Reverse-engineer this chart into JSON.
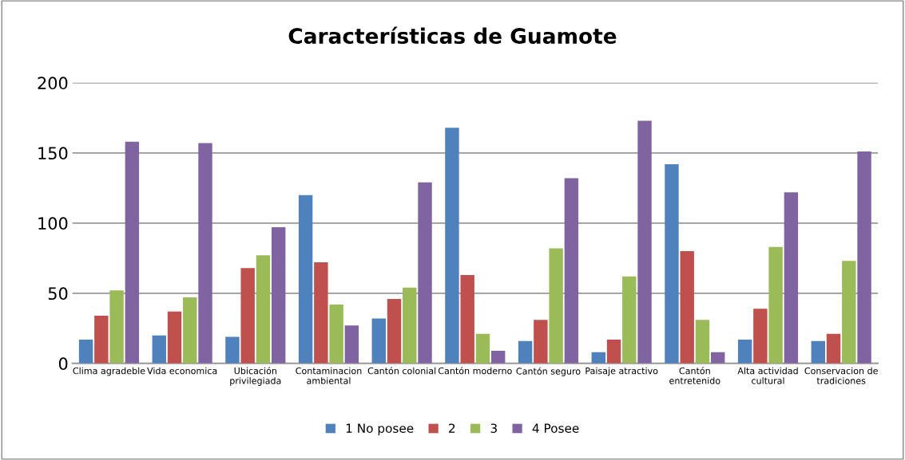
{
  "chart_data": {
    "type": "bar",
    "title": "Características de Guamote",
    "categories": [
      "Clima agradeble",
      "Vida economica",
      "Ubicación\nprivilegiada",
      "Contaminacion\nambiental",
      "Cantón colonial",
      "Cantón moderno",
      "Cantón seguro",
      "Paisaje atractivo",
      "Cantón\nentretenido",
      "Alta actividad\ncultural",
      "Conservacion de\ntradiciones"
    ],
    "series": [
      {
        "name": "1 No posee",
        "color": "#4f81bd",
        "values": [
          17,
          20,
          19,
          120,
          32,
          168,
          16,
          8,
          142,
          17,
          16
        ]
      },
      {
        "name": "2",
        "color": "#c0504d",
        "values": [
          34,
          37,
          68,
          72,
          46,
          63,
          31,
          17,
          80,
          39,
          21
        ]
      },
      {
        "name": "3",
        "color": "#9bbb59",
        "values": [
          52,
          47,
          77,
          42,
          54,
          21,
          82,
          62,
          31,
          83,
          73
        ]
      },
      {
        "name": "4 Posee",
        "color": "#8064a2",
        "values": [
          158,
          157,
          97,
          27,
          129,
          9,
          132,
          173,
          8,
          122,
          151
        ]
      }
    ],
    "ylim": [
      0,
      200
    ],
    "yticks": [
      0,
      50,
      100,
      150,
      200
    ],
    "grid": "y",
    "legend": "bottom"
  }
}
